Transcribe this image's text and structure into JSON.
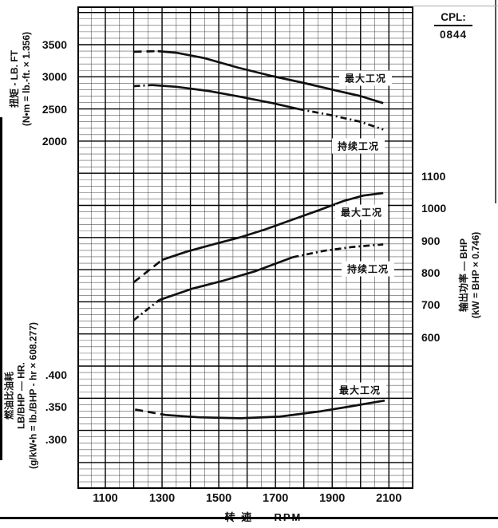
{
  "cpl": {
    "label": "CPL:",
    "value": "0844"
  },
  "x_axis": {
    "title": "转 速 — RPM",
    "tick_labels": [
      "1100",
      "1300",
      "1500",
      "1700",
      "1900",
      "2100"
    ],
    "tick_values": [
      1100,
      1300,
      1500,
      1700,
      1900,
      2100
    ],
    "range": [
      1000,
      2160
    ]
  },
  "chart_data": [
    {
      "id": "torque",
      "type": "line",
      "position": "top",
      "ylabel_lines": [
        "扭矩 - LB. FT",
        "(N•m = lb.-ft. × 1.356)"
      ],
      "ytick_labels": [
        "3500",
        "3000",
        "2500",
        "2000"
      ],
      "ytick_values": [
        3500,
        3000,
        2500,
        2000
      ],
      "ylim": [
        2000,
        3600
      ],
      "grid": true,
      "series": [
        {
          "name": "最大工况",
          "segments": [
            {
              "style": "dashed",
              "points": [
                [
                  1200,
                  3390
                ],
                [
                  1285,
                  3400
                ]
              ]
            },
            {
              "style": "solid",
              "points": [
                [
                  1285,
                  3400
                ],
                [
                  1350,
                  3375
                ],
                [
                  1450,
                  3290
                ],
                [
                  1570,
                  3140
                ],
                [
                  1690,
                  3010
                ],
                [
                  1800,
                  2905
                ],
                [
                  1910,
                  2790
                ],
                [
                  2000,
                  2700
                ],
                [
                  2080,
                  2590
                ]
              ]
            }
          ]
        },
        {
          "name": "持续工况",
          "segments": [
            {
              "style": "dashdot",
              "points": [
                [
                  1200,
                  2855
                ],
                [
                  1265,
                  2872
                ]
              ]
            },
            {
              "style": "solid",
              "points": [
                [
                  1265,
                  2872
                ],
                [
                  1350,
                  2845
                ],
                [
                  1470,
                  2775
                ],
                [
                  1570,
                  2695
                ],
                [
                  1690,
                  2590
                ],
                [
                  1780,
                  2500
                ]
              ]
            },
            {
              "style": "dashdot",
              "points": [
                [
                  1780,
                  2500
                ],
                [
                  1900,
                  2400
                ],
                [
                  2000,
                  2300
                ],
                [
                  2080,
                  2180
                ]
              ]
            }
          ]
        }
      ]
    },
    {
      "id": "power",
      "type": "line",
      "position": "middle",
      "ylabel_lines": [
        "输出功率 — BHP",
        "(kW = BHP × 0.746)"
      ],
      "ytick_labels": [
        "1100",
        "1000",
        "900",
        "800",
        "700",
        "600"
      ],
      "ytick_values": [
        1100,
        1000,
        900,
        800,
        700,
        600
      ],
      "ylim": [
        600,
        1100
      ],
      "grid": true,
      "series": [
        {
          "name": "最大工况",
          "segments": [
            {
              "style": "dashed",
              "points": [
                [
                  1200,
                  770
                ],
                [
                  1300,
                  840
                ]
              ]
            },
            {
              "style": "solid",
              "points": [
                [
                  1300,
                  840
                ],
                [
                  1385,
                  865
                ],
                [
                  1480,
                  888
                ],
                [
                  1575,
                  910
                ],
                [
                  1665,
                  935
                ],
                [
                  1760,
                  965
                ],
                [
                  1855,
                  995
                ],
                [
                  1940,
                  1023
                ],
                [
                  2010,
                  1040
                ],
                [
                  2080,
                  1048
                ]
              ]
            }
          ]
        },
        {
          "name": "持续工况",
          "segments": [
            {
              "style": "dashdot",
              "points": [
                [
                  1200,
                  652
                ],
                [
                  1290,
                  715
                ]
              ]
            },
            {
              "style": "solid",
              "points": [
                [
                  1290,
                  715
                ],
                [
                  1405,
                  750
                ],
                [
                  1515,
                  775
                ],
                [
                  1630,
                  805
                ],
                [
                  1760,
                  848
                ]
              ]
            },
            {
              "style": "dashdot",
              "points": [
                [
                  1760,
                  848
                ],
                [
                  1870,
                  868
                ],
                [
                  1970,
                  880
                ],
                [
                  2080,
                  888
                ]
              ]
            }
          ]
        }
      ]
    },
    {
      "id": "fuel",
      "type": "line",
      "position": "bottom",
      "ylabel_lines": [
        "燃油比油耗",
        "LB/BHP — HR.",
        "(g/kW•h = lb./BHP - hr × 608.277)"
      ],
      "ytick_labels": [
        ".400",
        ".350",
        ".300"
      ],
      "ytick_values": [
        0.4,
        0.35,
        0.3
      ],
      "ylim": [
        0.3,
        0.4
      ],
      "grid": true,
      "series": [
        {
          "name": "最大工况",
          "segments": [
            {
              "style": "dashed",
              "points": [
                [
                  1205,
                  0.346
                ],
                [
                  1315,
                  0.3375
                ]
              ]
            },
            {
              "style": "solid",
              "points": [
                [
                  1315,
                  0.3375
                ],
                [
                  1430,
                  0.334
                ],
                [
                  1575,
                  0.3325
                ],
                [
                  1715,
                  0.335
                ],
                [
                  1855,
                  0.343
                ],
                [
                  1965,
                  0.351
                ],
                [
                  2085,
                  0.36
                ]
              ]
            }
          ]
        }
      ]
    }
  ]
}
